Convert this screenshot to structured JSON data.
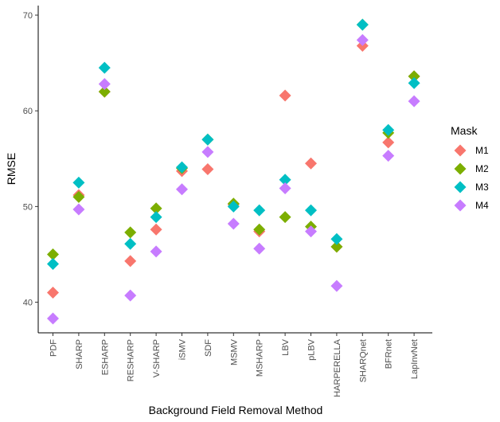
{
  "chart_data": {
    "type": "scatter",
    "xlabel": "Background Field Removal Method",
    "ylabel": "RMSE",
    "ylim": [
      36.8,
      71.0
    ],
    "yticks": [
      40,
      50,
      60,
      70
    ],
    "grid": false,
    "legend_title": "Mask",
    "legend_position": "right",
    "marker": "diamond",
    "categories": [
      "PDF",
      "SHARP",
      "ESHARP",
      "RESHARP",
      "V-SHARP",
      "iSMV",
      "SDF",
      "MSMV",
      "MSHARP",
      "LBV",
      "pLBV",
      "HARPERELLA",
      "SHARQnet",
      "BFRnet",
      "LapInvNet"
    ],
    "series": [
      {
        "name": "M1",
        "color": "#F8766D",
        "values": [
          41.0,
          51.2,
          62.0,
          44.3,
          47.6,
          53.7,
          53.9,
          50.2,
          47.4,
          61.6,
          54.5,
          45.8,
          66.8,
          56.7,
          63.6
        ]
      },
      {
        "name": "M2",
        "color": "#7CAE00",
        "values": [
          45.0,
          51.0,
          62.0,
          47.3,
          49.8,
          54.0,
          57.0,
          50.3,
          47.6,
          48.9,
          47.9,
          45.8,
          69.0,
          57.7,
          63.6
        ]
      },
      {
        "name": "M3",
        "color": "#00BFC4",
        "values": [
          44.0,
          52.5,
          64.5,
          46.1,
          48.9,
          54.1,
          57.0,
          50.0,
          49.6,
          52.8,
          49.6,
          46.6,
          69.0,
          58.0,
          62.9
        ]
      },
      {
        "name": "M4",
        "color": "#C77CFF",
        "values": [
          38.3,
          49.7,
          62.8,
          40.7,
          45.3,
          51.8,
          55.7,
          48.2,
          45.6,
          51.9,
          47.4,
          41.7,
          67.4,
          55.3,
          61.0
        ]
      }
    ]
  }
}
